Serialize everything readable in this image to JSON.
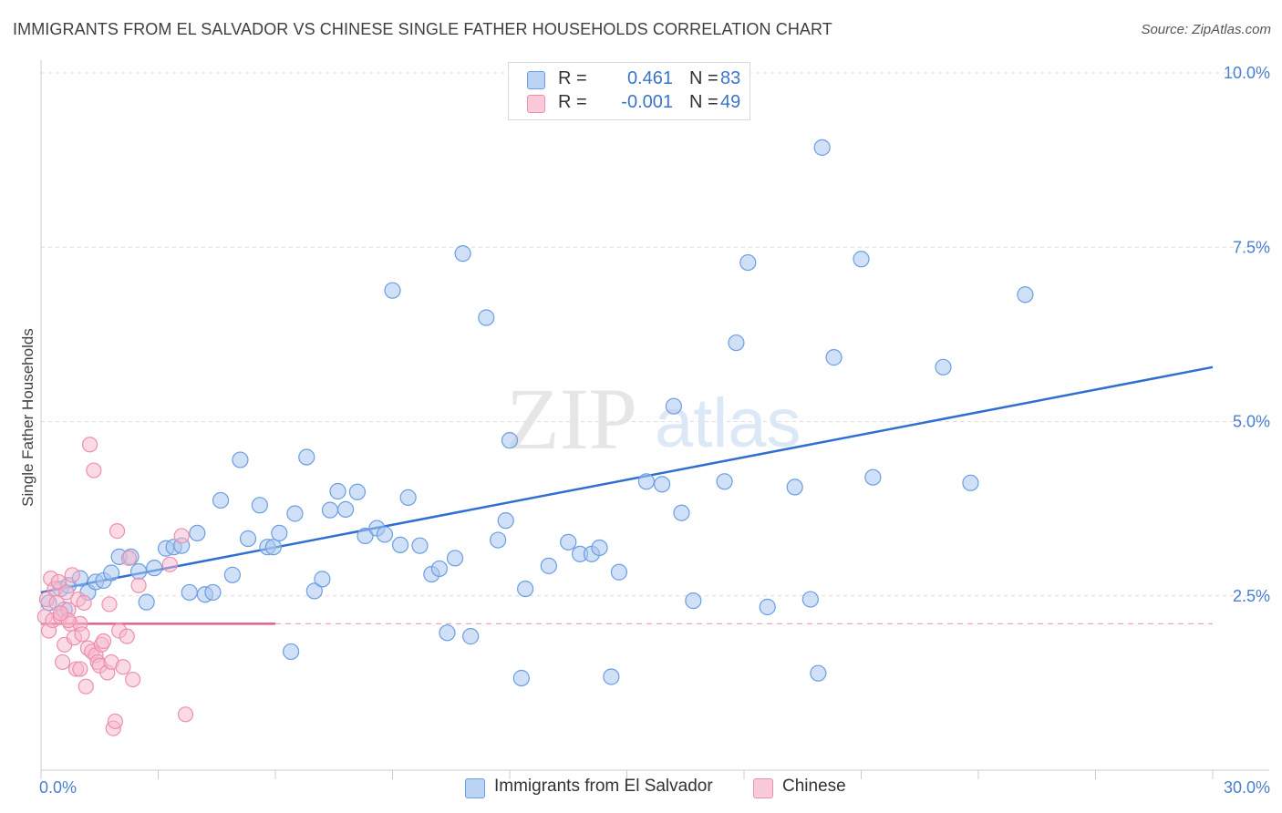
{
  "title": "IMMIGRANTS FROM EL SALVADOR VS CHINESE SINGLE FATHER HOUSEHOLDS CORRELATION CHART",
  "source": "Source: ZipAtlas.com",
  "watermark": {
    "zip": "ZIP",
    "atlas": "atlas"
  },
  "legend": {
    "rows": [
      {
        "r_label": "R =",
        "r_value": "0.461",
        "n_label": "N =",
        "n_value": "83",
        "color": "#a9c7f0"
      },
      {
        "r_label": "R =",
        "r_value": "-0.001",
        "n_label": "N =",
        "n_value": "49",
        "color": "#f6b8cb"
      }
    ]
  },
  "bottom_legend": [
    {
      "label": "Immigrants from El Salvador",
      "color": "#a9c7f0"
    },
    {
      "label": "Chinese",
      "color": "#f6b8cb"
    }
  ],
  "chart_data": {
    "type": "scatter",
    "title": "IMMIGRANTS FROM EL SALVADOR VS CHINESE SINGLE FATHER HOUSEHOLDS CORRELATION CHART",
    "xlabel": "",
    "ylabel": "Single Father Households",
    "xlim": [
      0,
      30
    ],
    "ylim": [
      0,
      10
    ],
    "x_tick_labels": [
      {
        "value": 0,
        "label": "0.0%"
      },
      {
        "value": 30,
        "label": "30.0%"
      }
    ],
    "y_tick_labels": [
      {
        "value": 2.5,
        "label": "2.5%"
      },
      {
        "value": 5.0,
        "label": "5.0%"
      },
      {
        "value": 7.5,
        "label": "7.5%"
      },
      {
        "value": 10.0,
        "label": "10.0%"
      }
    ],
    "grid": "horizontal dashed",
    "series": [
      {
        "name": "Immigrants from El Salvador",
        "color": "#a9c7f0",
        "stroke": "#6b9ee0",
        "trend": {
          "x": [
            0,
            30
          ],
          "y": [
            2.55,
            5.78
          ],
          "color": "#2f6fd1"
        },
        "points": [
          [
            0.2,
            2.4
          ],
          [
            0.5,
            2.6
          ],
          [
            0.6,
            2.3
          ],
          [
            0.7,
            2.65
          ],
          [
            1.0,
            2.75
          ],
          [
            1.2,
            2.55
          ],
          [
            1.4,
            2.7
          ],
          [
            1.6,
            2.72
          ],
          [
            1.8,
            2.83
          ],
          [
            2.0,
            3.06
          ],
          [
            2.3,
            3.06
          ],
          [
            2.5,
            2.85
          ],
          [
            2.7,
            2.41
          ],
          [
            2.9,
            2.9
          ],
          [
            3.2,
            3.18
          ],
          [
            3.4,
            3.2
          ],
          [
            3.6,
            3.22
          ],
          [
            3.8,
            2.55
          ],
          [
            4.0,
            3.4
          ],
          [
            4.2,
            2.52
          ],
          [
            4.4,
            2.55
          ],
          [
            4.6,
            3.87
          ],
          [
            4.9,
            2.8
          ],
          [
            5.1,
            4.45
          ],
          [
            5.3,
            3.32
          ],
          [
            5.6,
            3.8
          ],
          [
            5.8,
            3.2
          ],
          [
            5.95,
            3.2
          ],
          [
            6.1,
            3.4
          ],
          [
            6.4,
            1.7
          ],
          [
            6.5,
            3.68
          ],
          [
            6.8,
            4.49
          ],
          [
            7.0,
            2.57
          ],
          [
            7.2,
            2.74
          ],
          [
            7.4,
            3.73
          ],
          [
            7.6,
            4.0
          ],
          [
            7.8,
            3.74
          ],
          [
            8.1,
            3.99
          ],
          [
            8.3,
            3.36
          ],
          [
            8.6,
            3.47
          ],
          [
            8.8,
            3.38
          ],
          [
            9.0,
            6.88
          ],
          [
            9.2,
            3.23
          ],
          [
            9.4,
            3.91
          ],
          [
            9.7,
            3.22
          ],
          [
            10.0,
            2.81
          ],
          [
            10.2,
            2.89
          ],
          [
            10.4,
            1.97
          ],
          [
            10.6,
            3.04
          ],
          [
            10.8,
            7.41
          ],
          [
            11.0,
            1.92
          ],
          [
            11.4,
            6.49
          ],
          [
            11.7,
            3.3
          ],
          [
            11.9,
            3.58
          ],
          [
            12.0,
            4.73
          ],
          [
            12.3,
            1.32
          ],
          [
            12.4,
            2.6
          ],
          [
            13.0,
            2.93
          ],
          [
            13.5,
            3.27
          ],
          [
            13.8,
            3.1
          ],
          [
            14.1,
            3.1
          ],
          [
            14.3,
            3.19
          ],
          [
            14.6,
            1.34
          ],
          [
            14.8,
            2.84
          ],
          [
            15.5,
            4.14
          ],
          [
            15.9,
            4.1
          ],
          [
            16.2,
            5.22
          ],
          [
            16.4,
            3.69
          ],
          [
            16.7,
            2.43
          ],
          [
            17.5,
            4.14
          ],
          [
            17.8,
            6.13
          ],
          [
            18.1,
            7.28
          ],
          [
            18.6,
            2.34
          ],
          [
            19.3,
            4.06
          ],
          [
            19.7,
            2.45
          ],
          [
            19.9,
            1.39
          ],
          [
            20.0,
            8.93
          ],
          [
            20.3,
            5.92
          ],
          [
            21.0,
            7.33
          ],
          [
            21.3,
            4.2
          ],
          [
            23.1,
            5.78
          ],
          [
            23.8,
            4.12
          ],
          [
            25.2,
            6.82
          ]
        ]
      },
      {
        "name": "Chinese",
        "color": "#f6b8cb",
        "stroke": "#ec8fad",
        "trend": {
          "x": [
            0,
            6
          ],
          "y": [
            2.1,
            2.1
          ],
          "x_dashed_end": 30,
          "color": "#e0618e"
        },
        "points": [
          [
            0.1,
            2.2
          ],
          [
            0.15,
            2.45
          ],
          [
            0.2,
            2.0
          ],
          [
            0.25,
            2.75
          ],
          [
            0.3,
            2.15
          ],
          [
            0.35,
            2.6
          ],
          [
            0.4,
            2.4
          ],
          [
            0.45,
            2.7
          ],
          [
            0.5,
            2.2
          ],
          [
            0.55,
            1.55
          ],
          [
            0.6,
            1.8
          ],
          [
            0.65,
            2.55
          ],
          [
            0.7,
            2.3
          ],
          [
            0.75,
            2.1
          ],
          [
            0.8,
            2.8
          ],
          [
            0.85,
            1.9
          ],
          [
            0.9,
            1.45
          ],
          [
            0.95,
            2.45
          ],
          [
            1.0,
            2.1
          ],
          [
            1.05,
            1.95
          ],
          [
            1.1,
            2.4
          ],
          [
            1.15,
            1.2
          ],
          [
            1.2,
            1.75
          ],
          [
            1.25,
            4.67
          ],
          [
            1.3,
            1.7
          ],
          [
            1.35,
            4.3
          ],
          [
            1.4,
            1.65
          ],
          [
            1.45,
            1.55
          ],
          [
            1.5,
            1.5
          ],
          [
            1.55,
            1.8
          ],
          [
            1.6,
            1.85
          ],
          [
            1.7,
            1.4
          ],
          [
            1.75,
            2.38
          ],
          [
            1.8,
            1.55
          ],
          [
            1.85,
            0.6
          ],
          [
            1.9,
            0.7
          ],
          [
            1.95,
            3.43
          ],
          [
            2.0,
            2.0
          ],
          [
            2.1,
            1.48
          ],
          [
            2.2,
            1.92
          ],
          [
            2.25,
            3.04
          ],
          [
            2.35,
            1.3
          ],
          [
            2.5,
            2.65
          ],
          [
            3.3,
            2.95
          ],
          [
            3.6,
            3.36
          ],
          [
            3.7,
            0.8
          ],
          [
            1.0,
            1.45
          ],
          [
            0.7,
            2.15
          ],
          [
            0.5,
            2.25
          ]
        ]
      }
    ]
  }
}
